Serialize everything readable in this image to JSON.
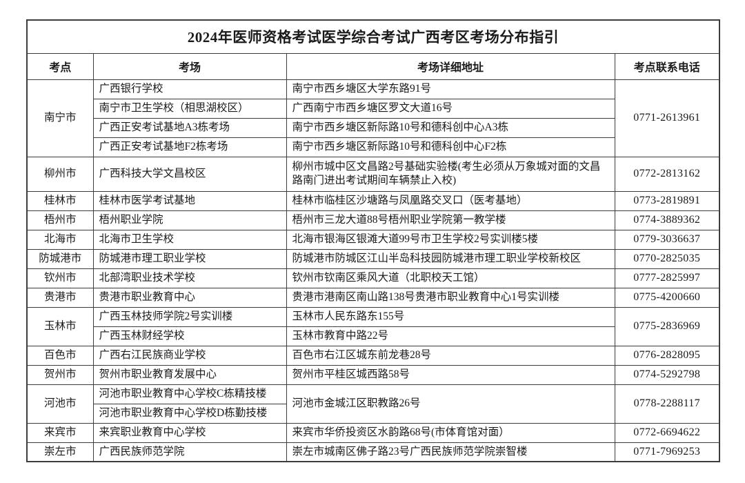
{
  "table": {
    "title": "2024年医师资格考试医学综合考试广西考区考场分布指引",
    "headers": [
      "考点",
      "考场",
      "考场详细地址",
      "考点联系电话"
    ],
    "groups": [
      {
        "city": "南宁市",
        "phone": "0771-2613961",
        "entries": [
          {
            "venue": "广西银行学校",
            "address": "南宁市西乡塘区大学东路91号"
          },
          {
            "venue": "南宁市卫生学校（相思湖校区）",
            "address": "广西南宁市西乡塘区罗文大道16号"
          },
          {
            "venue": "广西正安考试基地A3栋考场",
            "address": "南宁市西乡塘区新际路10号和德科创中心A3栋"
          },
          {
            "venue": "广西正安考试基地F2栋考场",
            "address": "南宁市西乡塘区新际路10号和德科创中心F2栋"
          }
        ]
      },
      {
        "city": "柳州市",
        "phone": "0772-2813162",
        "entries": [
          {
            "venue": "广西科技大学文昌校区",
            "address": "柳州市城中区文昌路2号基础实验楼(考生必须从万象城对面的文昌路南门进出考试期间车辆禁止入校)"
          }
        ]
      },
      {
        "city": "桂林市",
        "phone": "0773-2819891",
        "entries": [
          {
            "venue": "桂林市医学考试基地",
            "address": "桂林市临桂区沙塘路与凤凰路交叉口（医考基地）"
          }
        ]
      },
      {
        "city": "梧州市",
        "phone": "0774-3889362",
        "entries": [
          {
            "venue": "梧州职业学院",
            "address": "梧州市三龙大道88号梧州职业学院第一教学楼"
          }
        ]
      },
      {
        "city": "北海市",
        "phone": "0779-3036637",
        "entries": [
          {
            "venue": "北海市卫生学校",
            "address": "北海市银海区银滩大道99号市卫生学校2号实训楼5楼"
          }
        ]
      },
      {
        "city": "防城港市",
        "phone": "0770-2825035",
        "entries": [
          {
            "venue": "防城港市理工职业学校",
            "address": "防城港市防城区江山半岛科技园防城港市理工职业学校新校区"
          }
        ]
      },
      {
        "city": "钦州市",
        "phone": "0777-2825997",
        "entries": [
          {
            "venue": "北部湾职业技术学校",
            "address": "钦州市钦南区乘风大道（北职校天工馆）"
          }
        ]
      },
      {
        "city": "贵港市",
        "phone": "0775-4200660",
        "entries": [
          {
            "venue": "贵港市职业教育中心",
            "address": "贵港市港南区南山路138号贵港市职业教育中心1号实训楼"
          }
        ]
      },
      {
        "city": "玉林市",
        "phone": "0775-2836969",
        "entries": [
          {
            "venue": "广西玉林技师学院2号实训楼",
            "address": "玉林市人民东路东155号"
          },
          {
            "venue": "广西玉林财经学校",
            "address": "玉林市教育中路22号"
          }
        ]
      },
      {
        "city": "百色市",
        "phone": "0776-2828095",
        "entries": [
          {
            "venue": "广西右江民族商业学校",
            "address": "百色市右江区城东前龙巷28号"
          }
        ]
      },
      {
        "city": "贺州市",
        "phone": "0774-5292798",
        "entries": [
          {
            "venue": "贺州市职业教育发展中心",
            "address": "贺州市平桂区城西路58号"
          }
        ]
      },
      {
        "city": "河池市",
        "phone": "0778-2288117",
        "entries": [
          {
            "venue": "河池市职业教育中心学校C栋精技楼",
            "address": "河池市金城江区职教路26号"
          },
          {
            "venue": "河池市职业教育中心学校D栋勤技楼"
          }
        ]
      },
      {
        "city": "来宾市",
        "phone": "0772-6694622",
        "entries": [
          {
            "venue": "来宾职业教育中心学校",
            "address": "来宾市华侨投资区水韵路68号(市体育馆对面）"
          }
        ]
      },
      {
        "city": "崇左市",
        "phone": "0771-7969253",
        "entries": [
          {
            "venue": "广西民族师范学院",
            "address": "崇左市城南区佛子路23号广西民族师范学院崇智楼"
          }
        ]
      }
    ]
  }
}
